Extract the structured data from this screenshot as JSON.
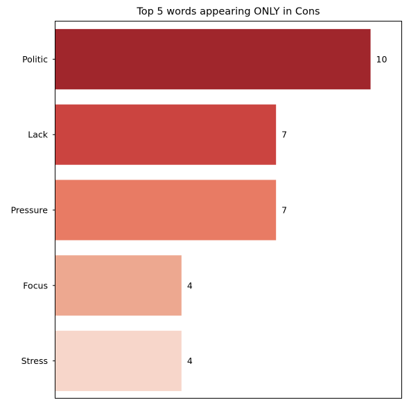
{
  "chart_data": {
    "type": "bar",
    "orientation": "horizontal",
    "title": "Top 5 words appearing ONLY in Cons",
    "xlabel": "",
    "ylabel": "",
    "categories": [
      "Politic",
      "Lack",
      "Pressure",
      "Focus",
      "Stress"
    ],
    "values": [
      10,
      7,
      7,
      4,
      4
    ],
    "xlim": [
      0,
      11
    ],
    "colors": [
      "#a0262c",
      "#cb4440",
      "#e87b64",
      "#eda890",
      "#f7d6ca"
    ],
    "show_data_labels": true,
    "show_x_ticks": false,
    "grid": false,
    "legend": "none"
  }
}
